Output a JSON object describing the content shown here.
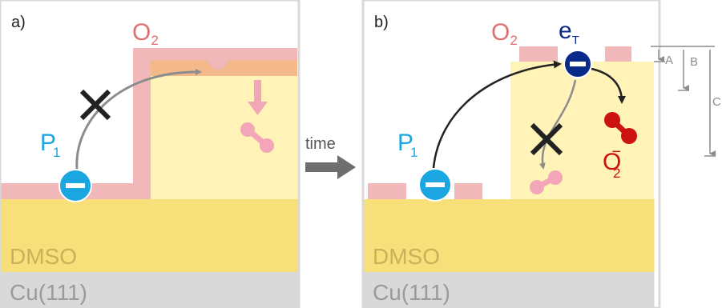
{
  "panel_a": {
    "label": "a)",
    "o2_label": "O",
    "o2_sub": "2",
    "p1_label": "P",
    "p1_sub": "1",
    "solvent_label": "DMSO",
    "substrate_label": "Cu(111)"
  },
  "transition": {
    "label": "time"
  },
  "panel_b": {
    "label": "b)",
    "o2_label": "O",
    "o2_sub": "2",
    "et_label": "e",
    "et_sub": "T",
    "p1_label": "P",
    "p1_sub": "1",
    "superoxide_label": "O",
    "superoxide_sub": "2",
    "superoxide_sup": "−",
    "solvent_label": "DMSO",
    "substrate_label": "Cu(111)",
    "dim_a": "A",
    "dim_b": "B",
    "dim_c": "C"
  },
  "colors": {
    "frame": "#d9d9d9",
    "dmso": "#f7e07a",
    "ice": "#fff3b8",
    "oxygen_layer": "#f0b8b8",
    "oxygen_text": "#e07070",
    "orange_layer": "#f3b98a",
    "cu": "#d9d9d9",
    "p1_blue": "#1aa6e0",
    "et_navy": "#0a2a8a",
    "superoxide_red": "#cc1111",
    "molecule_pink": "#f2a6b8",
    "gray_text": "#8c8c8c"
  }
}
